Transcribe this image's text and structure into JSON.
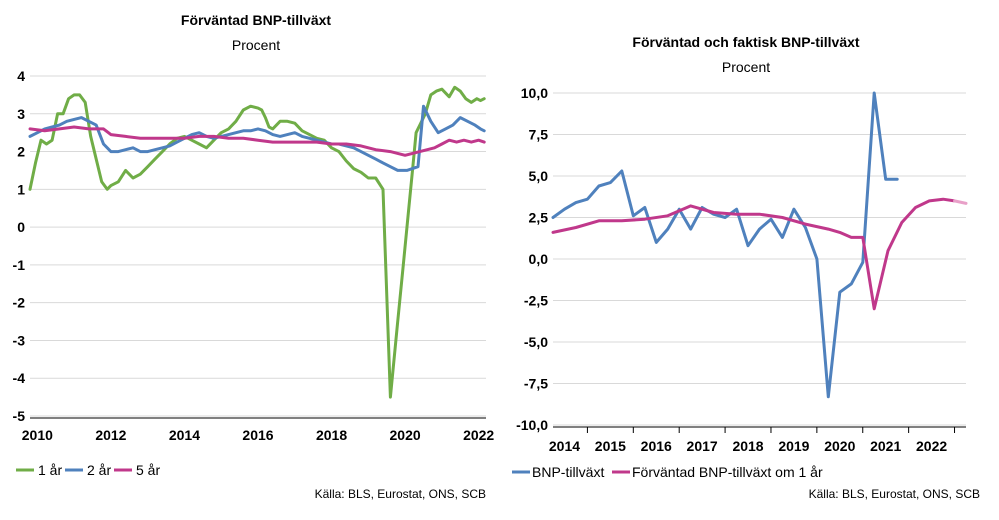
{
  "chart_data": [
    {
      "type": "line",
      "title": "Förväntad BNP-tillväxt",
      "subtitle": "Procent",
      "source": "Källa: BLS, Eurostat, ONS, SCB",
      "ylim": [
        -5,
        4
      ],
      "yticks": [
        "4",
        "3",
        "2",
        "1",
        "0",
        "-1",
        "-2",
        "-3",
        "-4",
        "-5"
      ],
      "xticks": [
        "2010",
        "2012",
        "2014",
        "2016",
        "2018",
        "2020",
        "2022"
      ],
      "xlim": [
        2009.8,
        2022.2
      ],
      "grid": true,
      "legend_position": "bottom-left",
      "series": [
        {
          "name": "1 år",
          "color": "#70ad47",
          "x": [
            2009.8,
            2009.95,
            2010.1,
            2010.25,
            2010.4,
            2010.55,
            2010.7,
            2010.85,
            2011.0,
            2011.15,
            2011.3,
            2011.45,
            2011.6,
            2011.75,
            2011.9,
            2012.0,
            2012.2,
            2012.4,
            2012.6,
            2012.8,
            2013.0,
            2013.2,
            2013.4,
            2013.6,
            2013.8,
            2014.0,
            2014.2,
            2014.4,
            2014.6,
            2014.8,
            2015.0,
            2015.2,
            2015.4,
            2015.6,
            2015.8,
            2016.0,
            2016.1,
            2016.2,
            2016.3,
            2016.4,
            2016.6,
            2016.8,
            2017.0,
            2017.2,
            2017.4,
            2017.6,
            2017.8,
            2018.0,
            2018.2,
            2018.4,
            2018.6,
            2018.8,
            2019.0,
            2019.2,
            2019.4,
            2019.6,
            2019.8,
            2019.95,
            2020.1,
            2020.2,
            2020.3,
            2020.4,
            2020.55,
            2020.7,
            2020.85,
            2021.0,
            2021.2,
            2021.35,
            2021.5,
            2021.65,
            2021.8,
            2021.95,
            2022.05,
            2022.15
          ],
          "values": [
            1.0,
            1.7,
            2.3,
            2.2,
            2.3,
            3.0,
            3.0,
            3.4,
            3.5,
            3.5,
            3.3,
            2.4,
            1.8,
            1.2,
            1.0,
            1.1,
            1.2,
            1.5,
            1.3,
            1.4,
            1.6,
            1.8,
            2.0,
            2.2,
            2.35,
            2.4,
            2.3,
            2.2,
            2.1,
            2.3,
            2.5,
            2.6,
            2.8,
            3.1,
            3.2,
            3.15,
            3.1,
            2.9,
            2.65,
            2.6,
            2.8,
            2.8,
            2.75,
            2.55,
            2.45,
            2.35,
            2.3,
            2.1,
            2.0,
            1.75,
            1.55,
            1.45,
            1.3,
            1.3,
            1.0,
            -4.5,
            -2.5,
            -1.0,
            0.5,
            1.5,
            2.5,
            2.7,
            3.0,
            3.5,
            3.6,
            3.65,
            3.45,
            3.7,
            3.6,
            3.4,
            3.3,
            3.4,
            3.35,
            3.4
          ]
        },
        {
          "name": "2 år",
          "color": "#4f81bd",
          "x": [
            2009.8,
            2010.0,
            2010.2,
            2010.4,
            2010.6,
            2010.8,
            2011.0,
            2011.2,
            2011.4,
            2011.6,
            2011.8,
            2012.0,
            2012.2,
            2012.4,
            2012.6,
            2012.8,
            2013.0,
            2013.2,
            2013.4,
            2013.6,
            2013.8,
            2014.0,
            2014.2,
            2014.4,
            2014.6,
            2014.8,
            2015.0,
            2015.2,
            2015.4,
            2015.6,
            2015.8,
            2016.0,
            2016.2,
            2016.4,
            2016.6,
            2016.8,
            2017.0,
            2017.2,
            2017.4,
            2017.6,
            2017.8,
            2018.0,
            2018.2,
            2018.4,
            2018.6,
            2018.8,
            2019.0,
            2019.2,
            2019.4,
            2019.6,
            2019.8,
            2019.95,
            2020.05,
            2020.2,
            2020.35,
            2020.5,
            2020.7,
            2020.9,
            2021.1,
            2021.3,
            2021.5,
            2021.7,
            2021.9,
            2022.05,
            2022.15
          ],
          "values": [
            2.4,
            2.5,
            2.6,
            2.65,
            2.7,
            2.8,
            2.85,
            2.9,
            2.8,
            2.7,
            2.2,
            2.0,
            2.0,
            2.05,
            2.1,
            2.0,
            2.0,
            2.05,
            2.1,
            2.15,
            2.25,
            2.35,
            2.45,
            2.5,
            2.4,
            2.35,
            2.4,
            2.45,
            2.5,
            2.55,
            2.55,
            2.6,
            2.55,
            2.45,
            2.4,
            2.45,
            2.5,
            2.4,
            2.35,
            2.3,
            2.25,
            2.2,
            2.2,
            2.15,
            2.1,
            2.0,
            1.9,
            1.8,
            1.7,
            1.6,
            1.5,
            1.5,
            1.5,
            1.55,
            1.6,
            3.2,
            2.8,
            2.5,
            2.6,
            2.7,
            2.9,
            2.8,
            2.7,
            2.6,
            2.55
          ]
        },
        {
          "name": "5 år",
          "color": "#c0388b",
          "x": [
            2009.8,
            2010.2,
            2010.6,
            2011.0,
            2011.4,
            2011.8,
            2012.0,
            2012.4,
            2012.8,
            2013.2,
            2013.6,
            2014.0,
            2014.4,
            2014.8,
            2015.2,
            2015.6,
            2016.0,
            2016.4,
            2016.8,
            2017.2,
            2017.6,
            2018.0,
            2018.4,
            2018.8,
            2019.2,
            2019.6,
            2019.8,
            2020.0,
            2020.2,
            2020.4,
            2020.6,
            2020.8,
            2021.0,
            2021.2,
            2021.4,
            2021.6,
            2021.8,
            2022.0,
            2022.15
          ],
          "values": [
            2.6,
            2.55,
            2.6,
            2.65,
            2.6,
            2.6,
            2.45,
            2.4,
            2.35,
            2.35,
            2.35,
            2.35,
            2.4,
            2.4,
            2.35,
            2.35,
            2.3,
            2.25,
            2.25,
            2.25,
            2.25,
            2.2,
            2.2,
            2.15,
            2.05,
            2.0,
            1.95,
            1.9,
            1.95,
            2.0,
            2.05,
            2.1,
            2.2,
            2.3,
            2.25,
            2.3,
            2.25,
            2.3,
            2.25
          ]
        }
      ]
    },
    {
      "type": "line",
      "title": "Förväntad och faktisk BNP-tillväxt",
      "subtitle": "Procent",
      "source": "Källa: BLS, Eurostat, ONS, SCB",
      "ylim": [
        -10,
        10
      ],
      "yticks": [
        "10,0",
        "7,5",
        "5,0",
        "2,5",
        "0,0",
        "-2,5",
        "-5,0",
        "-7,5",
        "-10,0"
      ],
      "xticks": [
        "2014",
        "2015",
        "2016",
        "2017",
        "2018",
        "2019",
        "2020",
        "2021",
        "2022"
      ],
      "xlim": [
        2014.0,
        2023.0
      ],
      "grid": true,
      "legend_position": "bottom-left",
      "series": [
        {
          "name": "BNP-tillväxt",
          "color": "#4f81bd",
          "x": [
            2014.0,
            2014.25,
            2014.5,
            2014.75,
            2015.0,
            2015.25,
            2015.5,
            2015.75,
            2016.0,
            2016.25,
            2016.5,
            2016.75,
            2017.0,
            2017.25,
            2017.5,
            2017.75,
            2018.0,
            2018.25,
            2018.5,
            2018.75,
            2019.0,
            2019.25,
            2019.5,
            2019.75,
            2020.0,
            2020.25,
            2020.5,
            2020.75,
            2021.0,
            2021.25,
            2021.5
          ],
          "values": [
            2.5,
            3.0,
            3.4,
            3.6,
            4.4,
            4.6,
            5.3,
            2.6,
            3.1,
            1.0,
            1.8,
            3.0,
            1.8,
            3.1,
            2.7,
            2.5,
            3.0,
            0.8,
            1.8,
            2.4,
            1.3,
            3.0,
            1.9,
            0.0,
            -8.3,
            -2.0,
            -1.5,
            -0.2,
            10.0,
            4.8,
            4.8
          ]
        },
        {
          "name": "Förväntad BNP-tillväxt om 1 år",
          "color": "#c0388b",
          "x": [
            2014.0,
            2014.5,
            2015.0,
            2015.5,
            2016.0,
            2016.5,
            2017.0,
            2017.5,
            2018.0,
            2018.5,
            2019.0,
            2019.5,
            2020.0,
            2020.25,
            2020.5,
            2020.75,
            2021.0,
            2021.3,
            2021.6,
            2021.9,
            2022.2,
            2022.5,
            2022.75
          ],
          "values": [
            1.6,
            1.9,
            2.3,
            2.3,
            2.4,
            2.6,
            3.2,
            2.8,
            2.7,
            2.7,
            2.5,
            2.1,
            1.8,
            1.6,
            1.3,
            1.3,
            -3.0,
            0.5,
            2.2,
            3.1,
            3.5,
            3.6,
            3.5
          ]
        }
      ]
    }
  ]
}
